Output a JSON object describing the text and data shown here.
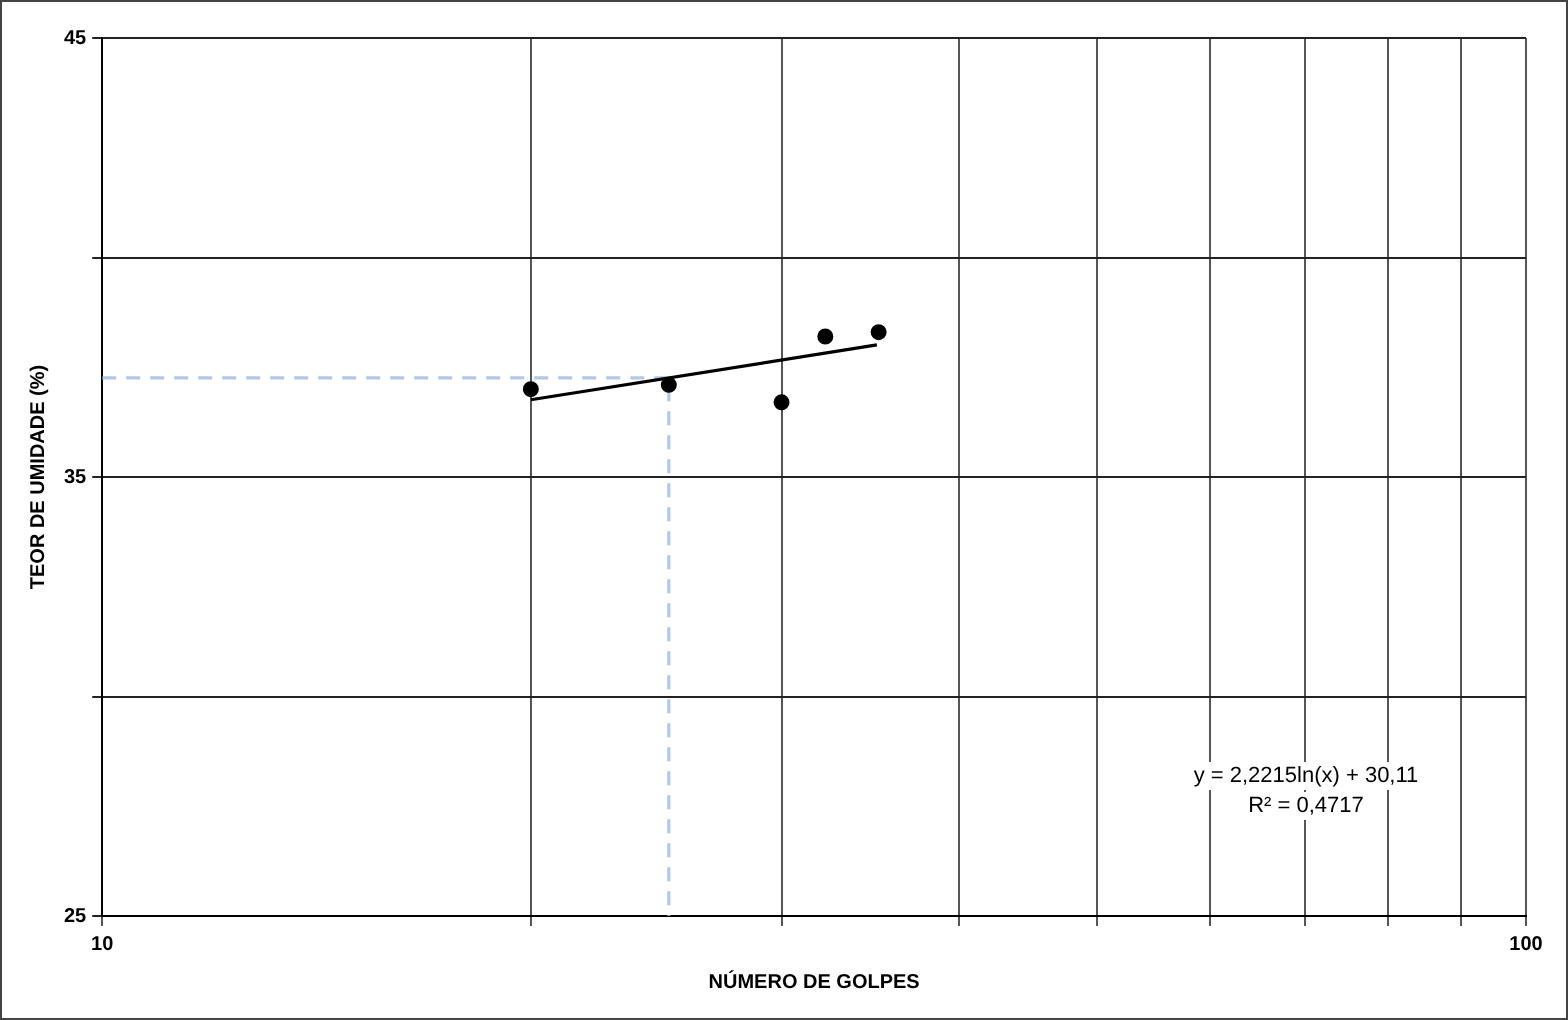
{
  "chart_data": {
    "type": "scatter",
    "xlabel": "NÚMERO DE GOLPES",
    "ylabel": "TEOR DE UMIDADE (%)",
    "log": "x",
    "xlim": [
      10,
      100
    ],
    "xticks": [
      10,
      {
        "value": 20,
        "label": null
      },
      {
        "value": 30,
        "label": null
      },
      {
        "value": 40,
        "label": null
      },
      {
        "value": 50,
        "label": null
      },
      {
        "value": 60,
        "label": null
      },
      {
        "value": 70,
        "label": null
      },
      {
        "value": 80,
        "label": null
      },
      {
        "value": 90,
        "label": null
      },
      100
    ],
    "ylim": [
      25,
      45
    ],
    "yticks": [
      25,
      {
        "value": 30,
        "label": null
      },
      35,
      {
        "value": 40,
        "label": null
      },
      45
    ],
    "grid": true,
    "legend": false,
    "series": [
      {
        "color": "#000000",
        "marker": "circle",
        "x": [
          20,
          25,
          30,
          32.2,
          35.1
        ],
        "values": [
          37.0,
          37.1,
          36.7,
          38.2,
          38.3
        ]
      },
      {
        "type": "line",
        "color": "#000000",
        "marker": "none",
        "line_style": "solid",
        "x": [
          20,
          35
        ],
        "values": [
          36.76,
          38.01
        ]
      },
      {
        "type": "line",
        "color": "#b4c7e7",
        "marker": "none",
        "line_style": "dashed",
        "x": [
          10,
          25,
          25
        ],
        "values": [
          37.26,
          37.26,
          25
        ]
      }
    ],
    "annotations": [
      "y = 2,2215ln(x) + 30,11",
      "R² = 0,4717"
    ]
  }
}
